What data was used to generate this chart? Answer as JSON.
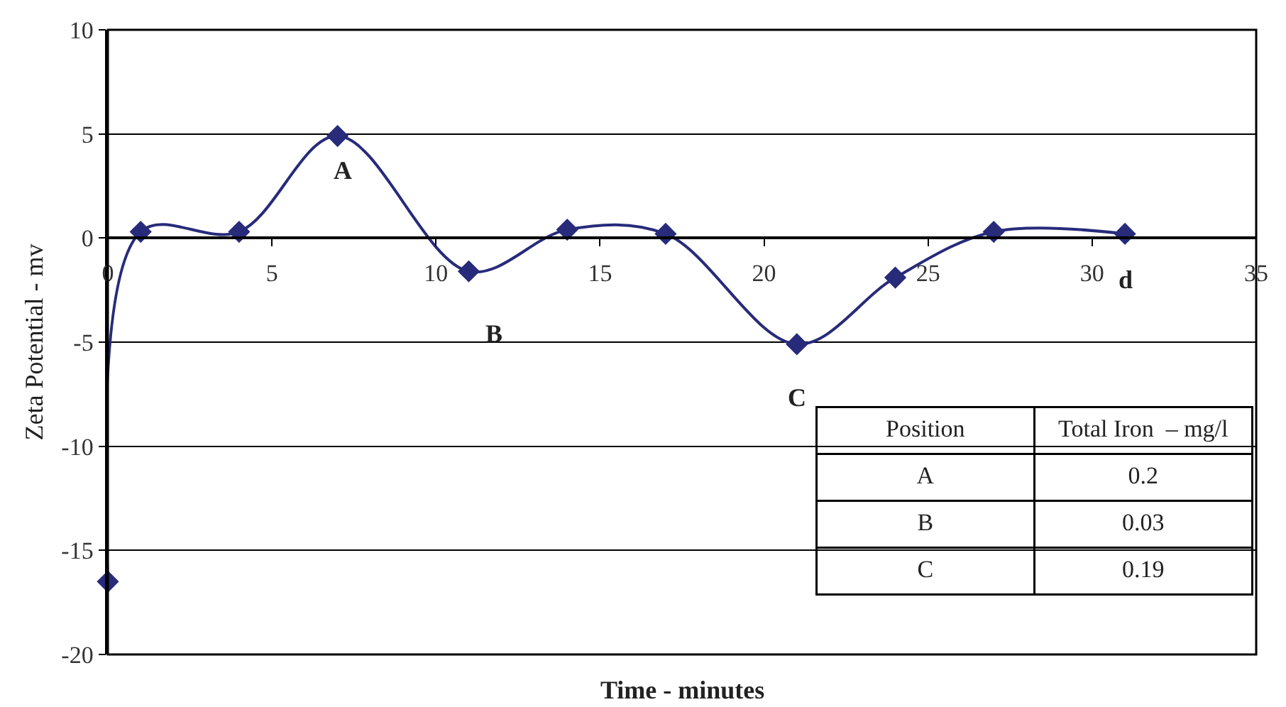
{
  "chart_data": [
    {
      "type": "line",
      "xlabel": "Time - minutes",
      "ylabel": "Zeta Potential - mv",
      "x": [
        0,
        1,
        4,
        7,
        11,
        14,
        17,
        21,
        24,
        27,
        31
      ],
      "series": [
        {
          "color": "#272b7a",
          "values": [
            -16.5,
            0.3,
            0.3,
            4.9,
            -1.6,
            0.4,
            0.2,
            -5.1,
            -1.9,
            0.3,
            0.2
          ]
        }
      ],
      "marker": "diamond",
      "line_style": "solid",
      "grid": "y",
      "xlim": [
        0,
        35
      ],
      "xticks": [
        0,
        5,
        10,
        15,
        20,
        25,
        30,
        35
      ],
      "ylim": [
        -20,
        10
      ],
      "yticks": [
        -20,
        -15,
        -10,
        -5,
        0,
        5,
        10
      ],
      "annotations": [
        {
          "text": "A",
          "x": 7,
          "y": 4.9
        },
        "B",
        {
          "text": "C",
          "x": 21,
          "y": -5.1
        },
        {
          "text": "d",
          "x": 31,
          "y": 0.2
        }
      ]
    },
    {
      "type": "other",
      "annotations": [
        "Position",
        "Total Iron  – mg/l",
        "A",
        "0.2",
        "B",
        "0.03",
        "C",
        "0.19"
      ]
    }
  ]
}
